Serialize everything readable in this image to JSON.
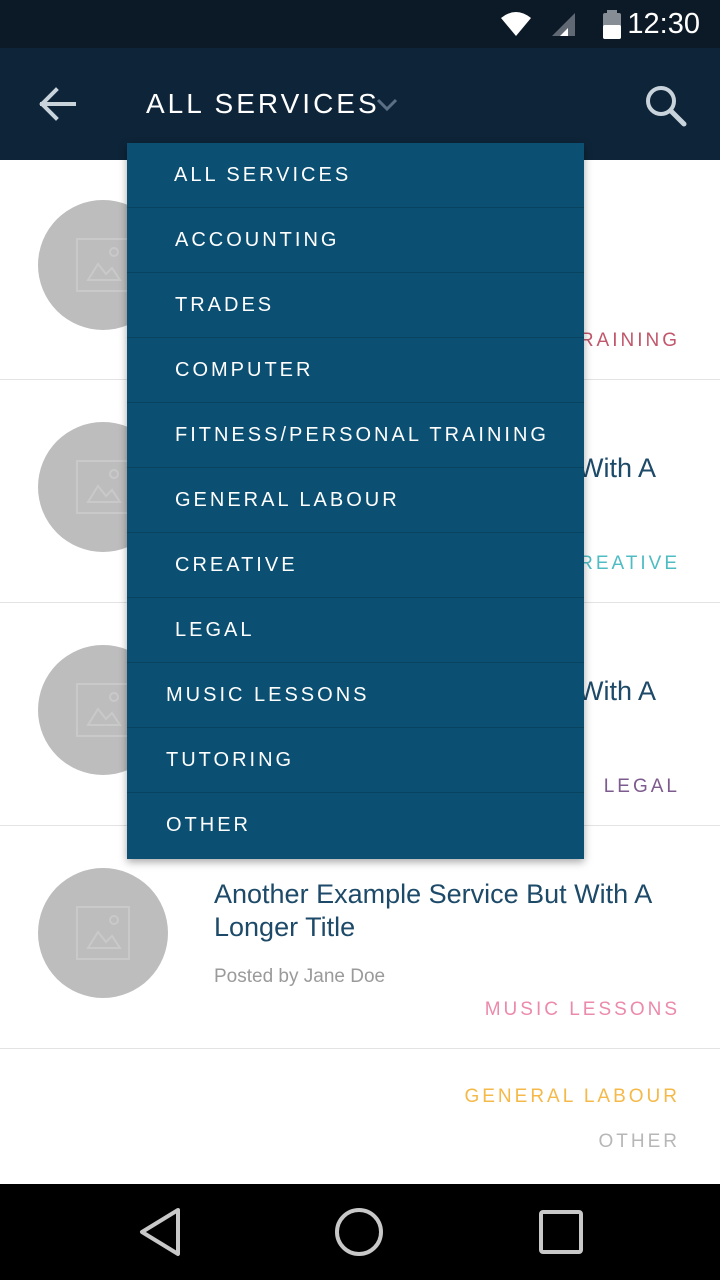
{
  "status_bar": {
    "time": "12:30",
    "icons": [
      "wifi-icon",
      "signal-icon",
      "battery-icon"
    ]
  },
  "app_bar": {
    "back_icon": "arrow-back-icon",
    "title": "ALL SERVICES",
    "dropdown_icon": "chevron-down-icon",
    "search_icon": "search-icon"
  },
  "rows": [
    {
      "title": "",
      "meta": "",
      "tag": "TRAINING",
      "tag_visible": "RAINING",
      "tag_color": "#c2566b"
    },
    {
      "title": "With A",
      "meta": "",
      "tag": "CREATIVE",
      "tag_visible": "REATIVE",
      "tag_color": "#4fbcc4"
    },
    {
      "title": "With A",
      "meta": "",
      "tag": "LEGAL",
      "tag_visible": "LEGAL",
      "tag_color": "#7d5b8e"
    },
    {
      "title": "Another Example Service But With A Longer Title",
      "meta": "Posted by Jane Doe",
      "tag": "MUSIC LESSONS",
      "tag_color": "#ec8aaa"
    }
  ],
  "bottom_tags": [
    {
      "label": "GENERAL LABOUR",
      "color": "#f5b949"
    },
    {
      "label": "OTHER",
      "color": "#b7b7b7"
    }
  ],
  "dropdown": {
    "items": [
      "ALL SERVICES",
      "ACCOUNTING",
      "TRADES",
      "COMPUTER",
      "FITNESS/PERSONAL TRAINING",
      "GENERAL LABOUR",
      "CREATIVE",
      "LEGAL",
      "MUSIC LESSONS",
      "TUTORING",
      "OTHER"
    ]
  },
  "nav_bar": {
    "icons": [
      "nav-back-icon",
      "nav-home-icon",
      "nav-recents-icon"
    ]
  },
  "colors": {
    "status_bar": "#0c1a28",
    "app_bar": "#0e2438",
    "dropdown": "#0b5073",
    "title_text": "#1d4a68"
  }
}
